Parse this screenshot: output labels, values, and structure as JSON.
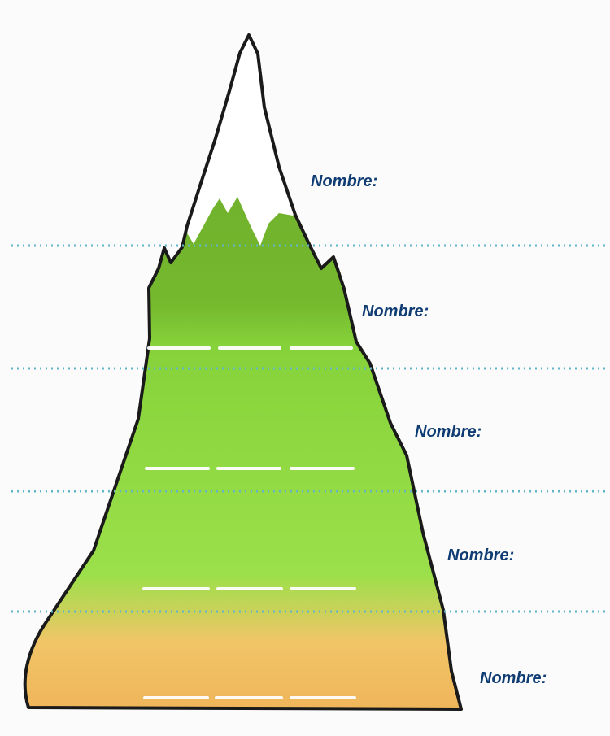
{
  "diagram": {
    "labels": [
      {
        "text": "Nombre:"
      },
      {
        "text": "Nombre:"
      },
      {
        "text": "Nombre:"
      },
      {
        "text": "Nombre:"
      },
      {
        "text": "Nombre:"
      }
    ]
  },
  "colors": {
    "snow": "#ffffff",
    "dark_green": "#78ba2f",
    "bright_green": "#8bdc3e",
    "sand": "#f2bf5f",
    "outline": "#1a1a1a",
    "label": "#0f3d73",
    "guide_line": "#62b5c9"
  }
}
